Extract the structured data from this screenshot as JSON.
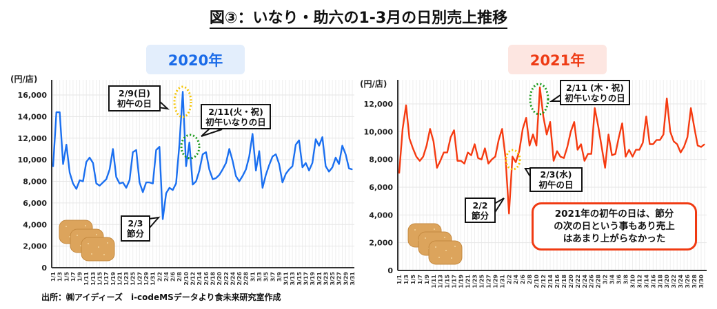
{
  "title": "図③：いなり・助六の1-3月の日別売上推移",
  "source": "出所：㈱アイディーズ　i-codeMSデータより食未来研究室作成",
  "colors": {
    "line_2020": "#1a6ff0",
    "line_2021": "#f53a10",
    "badge_2020_bg": "#e3eefc",
    "badge_2021_bg": "#fde6e1",
    "highlight_yellow": "#f5c400",
    "highlight_green": "#1a9a1a",
    "note_border": "#f03a12"
  },
  "icons": [
    "inari-sushi-illustration"
  ],
  "chart_data": [
    {
      "type": "line",
      "title": "2020年",
      "ylabel": "(円/店)",
      "ylim": [
        0,
        16000
      ],
      "yticks": [
        "0",
        "2,000",
        "4,000",
        "6,000",
        "8,000",
        "10,000",
        "12,000",
        "14,000",
        "16,000"
      ],
      "ytick_values": [
        0,
        2000,
        4000,
        6000,
        8000,
        10000,
        12000,
        14000,
        16000
      ],
      "grid": true,
      "year": 2020,
      "days_per_month": [
        31,
        29,
        31
      ],
      "xtick_labels": [
        "1/1",
        "1/3",
        "1/5",
        "1/7",
        "1/9",
        "1/11",
        "1/13",
        "1/15",
        "1/17",
        "1/19",
        "1/21",
        "1/23",
        "1/25",
        "1/27",
        "1/29",
        "1/31",
        "2/2",
        "2/4",
        "2/6",
        "2/8",
        "2/10",
        "2/12",
        "2/14",
        "2/16",
        "2/18",
        "2/20",
        "2/22",
        "2/24",
        "2/26",
        "2/28",
        "3/1",
        "3/3",
        "3/5",
        "3/7",
        "3/9",
        "3/11",
        "3/13",
        "3/15",
        "3/17",
        "3/19",
        "3/21",
        "3/23",
        "3/25",
        "3/27",
        "3/29",
        "3/31"
      ],
      "values": [
        9350,
        14400,
        14400,
        9600,
        11400,
        8800,
        7800,
        7300,
        8100,
        8000,
        9800,
        10200,
        9700,
        7800,
        7600,
        7900,
        8200,
        9100,
        11000,
        8400,
        7800,
        7900,
        7400,
        8100,
        10700,
        10900,
        7900,
        7000,
        7900,
        7900,
        7800,
        10900,
        11200,
        4500,
        6900,
        7400,
        7200,
        7800,
        11400,
        16300,
        9400,
        11600,
        7700,
        8000,
        9000,
        10500,
        10700,
        9100,
        8200,
        8300,
        8600,
        9100,
        9700,
        11000,
        9900,
        8500,
        8000,
        8500,
        9100,
        10300,
        12400,
        9000,
        10800,
        7400,
        8600,
        9500,
        10300,
        10500,
        9600,
        7900,
        8700,
        9100,
        9400,
        11400,
        11800,
        9300,
        9700,
        9000,
        9700,
        11900,
        11300,
        12100,
        9400,
        8900,
        9300,
        10200,
        9600,
        11300,
        10500,
        9200,
        9100
      ],
      "annotations": [
        {
          "lines": [
            "2/9(日)",
            "初午の日"
          ]
        },
        {
          "lines": [
            "2/11(火・祝)",
            "初午いなりの日"
          ]
        },
        {
          "lines": [
            "2/3",
            "節分"
          ]
        }
      ]
    },
    {
      "type": "line",
      "title": "2021年",
      "ylabel": "(円/店)",
      "ylim": [
        0,
        12000
      ],
      "yticks": [
        "0",
        "2,000",
        "4,000",
        "6,000",
        "8,000",
        "10,000",
        "12,000"
      ],
      "ytick_values": [
        0,
        2000,
        4000,
        6000,
        8000,
        10000,
        12000
      ],
      "grid": true,
      "year": 2021,
      "days_per_month": [
        31,
        28,
        31
      ],
      "xtick_labels": [
        "1/1",
        "1/3",
        "1/5",
        "1/7",
        "1/9",
        "1/11",
        "1/13",
        "1/15",
        "1/17",
        "1/19",
        "1/21",
        "1/23",
        "1/25",
        "1/27",
        "1/29",
        "1/31",
        "2/2",
        "2/4",
        "2/6",
        "2/8",
        "2/10",
        "2/12",
        "2/14",
        "2/16",
        "2/18",
        "2/20",
        "2/22",
        "2/24",
        "2/26",
        "2/28",
        "3/2",
        "3/4",
        "3/6",
        "3/8",
        "3/10",
        "3/12",
        "3/14",
        "3/16",
        "3/18",
        "3/20",
        "3/22",
        "3/24",
        "3/26",
        "3/28",
        "3/30"
      ],
      "values": [
        7000,
        10200,
        11900,
        9500,
        8800,
        8200,
        7900,
        8200,
        9000,
        10200,
        9300,
        7400,
        7900,
        8500,
        8500,
        9600,
        10100,
        7900,
        7900,
        7700,
        8500,
        8300,
        9100,
        8100,
        8000,
        8800,
        7700,
        8000,
        8200,
        9400,
        10200,
        8100,
        4100,
        8200,
        7800,
        8600,
        10200,
        11000,
        9000,
        9800,
        9000,
        13200,
        11100,
        9800,
        10700,
        7900,
        8600,
        8200,
        8100,
        8900,
        10000,
        10700,
        8700,
        9100,
        7900,
        8400,
        8400,
        11700,
        10400,
        8900,
        7400,
        9800,
        8300,
        8400,
        9600,
        10600,
        8200,
        8700,
        8200,
        8700,
        8700,
        9200,
        11100,
        9100,
        9100,
        9400,
        9400,
        9800,
        12400,
        10000,
        9300,
        9100,
        8500,
        8900,
        9600,
        11700,
        10300,
        9000,
        8900,
        9100
      ],
      "annotations": [
        {
          "lines": [
            "2/11 (木・祝)",
            "初午いなりの日"
          ]
        },
        {
          "lines": [
            "2/3(水)",
            "初午の日"
          ]
        },
        {
          "lines": [
            "2/2",
            "節分"
          ]
        }
      ],
      "note": [
        "2021年の初午の日は、節分",
        "の次の日という事もあり売上",
        "はあまり上がらなかった"
      ]
    }
  ]
}
